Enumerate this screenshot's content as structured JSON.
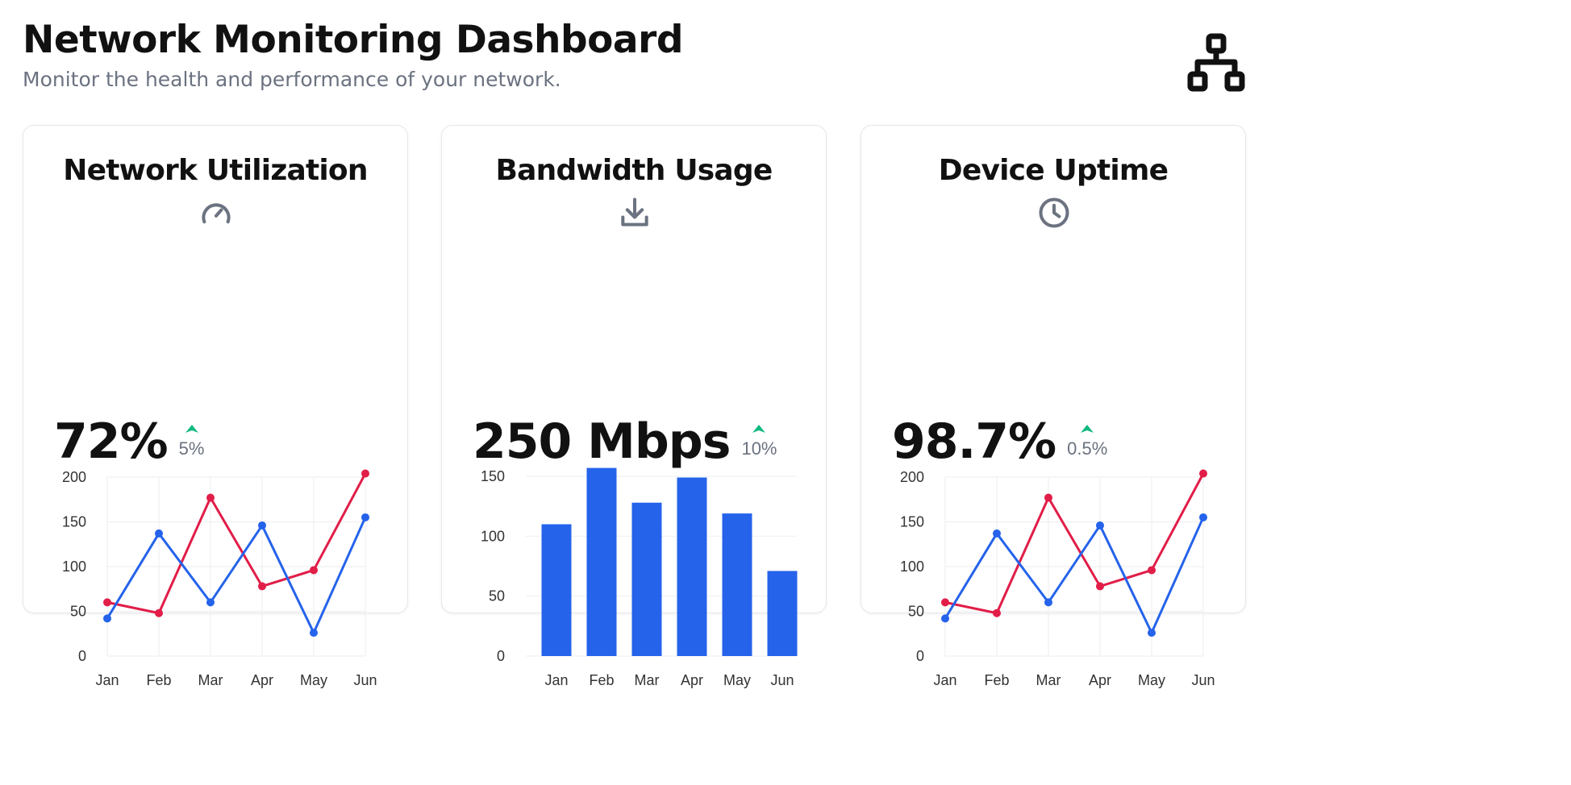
{
  "header": {
    "title": "Network Monitoring Dashboard",
    "subtitle": "Monitor the health and performance of your network."
  },
  "cards": [
    {
      "title": "Network Utilization",
      "icon": "gauge-icon",
      "value": "72%",
      "trend": "5%",
      "trend_direction": "up"
    },
    {
      "title": "Bandwidth Usage",
      "icon": "download-icon",
      "value": "250 Mbps",
      "trend": "10%",
      "trend_direction": "up"
    },
    {
      "title": "Device Uptime",
      "icon": "clock-icon",
      "value": "98.7%",
      "trend": "0.5%",
      "trend_direction": "up"
    }
  ],
  "colors": {
    "series_red": "#e11d48",
    "series_blue": "#2563eb",
    "bar": "#2563eb",
    "trend_up": "#10b981",
    "icon": "#6b7280",
    "grid": "#f0f0f0",
    "tick": "#333333"
  },
  "chart_data": [
    {
      "type": "line",
      "categories": [
        "Jan",
        "Feb",
        "Mar",
        "Apr",
        "May",
        "Jun"
      ],
      "series": [
        {
          "values": [
            60,
            48,
            177,
            78,
            96,
            204
          ],
          "color": "#e11d48"
        },
        {
          "values": [
            42,
            137,
            60,
            146,
            26,
            155
          ],
          "color": "#2563eb"
        }
      ],
      "yticks": [
        0,
        50,
        100,
        150,
        200
      ],
      "ylim": [
        0,
        200
      ],
      "grid": true
    },
    {
      "type": "bar",
      "categories": [
        "Jan",
        "Feb",
        "Mar",
        "Apr",
        "May",
        "Jun"
      ],
      "values": [
        110,
        157,
        128,
        149,
        119,
        71
      ],
      "yticks": [
        0,
        50,
        100,
        150
      ],
      "ylim": [
        0,
        150
      ],
      "grid": true
    },
    {
      "type": "line",
      "categories": [
        "Jan",
        "Feb",
        "Mar",
        "Apr",
        "May",
        "Jun"
      ],
      "series": [
        {
          "values": [
            60,
            48,
            177,
            78,
            96,
            204
          ],
          "color": "#e11d48"
        },
        {
          "values": [
            42,
            137,
            60,
            146,
            26,
            155
          ],
          "color": "#2563eb"
        }
      ],
      "yticks": [
        0,
        50,
        100,
        150,
        200
      ],
      "ylim": [
        0,
        200
      ],
      "grid": true
    }
  ]
}
